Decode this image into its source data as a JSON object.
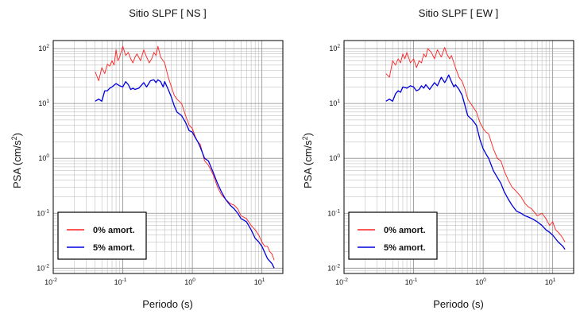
{
  "chart_data": [
    {
      "type": "line",
      "title": "Sitio SLPF [ NS ]",
      "xlabel": "Periodo (s)",
      "ylabel": "PSA (cm/s",
      "ylabel_sup": "2",
      "ylabel_end": ")",
      "xscale": "log",
      "yscale": "log",
      "xlim": [
        0.01,
        20
      ],
      "ylim": [
        0.008,
        140
      ],
      "grid": true,
      "legend_position": "bottom-left",
      "x_ticks": [
        {
          "base": "10",
          "exp": "-2"
        },
        {
          "base": "10",
          "exp": "-1"
        },
        {
          "base": "10",
          "exp": "0"
        },
        {
          "base": "10",
          "exp": "1"
        }
      ],
      "y_ticks": [
        {
          "base": "10",
          "exp": "-2"
        },
        {
          "base": "10",
          "exp": "-1"
        },
        {
          "base": "10",
          "exp": "0"
        },
        {
          "base": "10",
          "exp": "1"
        },
        {
          "base": "10",
          "exp": "2"
        }
      ],
      "series": [
        {
          "name": "0% amort.",
          "color": "#ff2020",
          "x": [
            0.04,
            0.045,
            0.05,
            0.055,
            0.06,
            0.065,
            0.07,
            0.075,
            0.08,
            0.085,
            0.09,
            0.1,
            0.11,
            0.12,
            0.13,
            0.14,
            0.15,
            0.16,
            0.18,
            0.2,
            0.22,
            0.24,
            0.26,
            0.28,
            0.3,
            0.32,
            0.35,
            0.38,
            0.4,
            0.45,
            0.5,
            0.55,
            0.6,
            0.7,
            0.8,
            0.9,
            1.0,
            1.1,
            1.2,
            1.3,
            1.5,
            1.7,
            2.0,
            2.3,
            2.6,
            3.0,
            3.5,
            4.0,
            4.5,
            5.0,
            6.0,
            7.0,
            8.0,
            9.0,
            10.0,
            11.0,
            12.0,
            13.0,
            14.0,
            15.0
          ],
          "y": [
            38,
            26,
            45,
            35,
            52,
            48,
            60,
            50,
            95,
            60,
            70,
            110,
            75,
            85,
            65,
            55,
            70,
            80,
            60,
            95,
            70,
            55,
            65,
            85,
            75,
            110,
            70,
            60,
            55,
            30,
            20,
            14,
            12,
            10,
            6,
            4,
            3.5,
            2.5,
            2.0,
            1.8,
            0.9,
            0.75,
            0.5,
            0.3,
            0.22,
            0.18,
            0.15,
            0.14,
            0.12,
            0.09,
            0.08,
            0.06,
            0.05,
            0.04,
            0.03,
            0.025,
            0.025,
            0.02,
            0.018,
            0.014
          ]
        },
        {
          "name": "5% amort.",
          "color": "#0000dd",
          "x": [
            0.04,
            0.045,
            0.05,
            0.055,
            0.06,
            0.065,
            0.07,
            0.08,
            0.09,
            0.1,
            0.11,
            0.12,
            0.13,
            0.14,
            0.15,
            0.17,
            0.2,
            0.22,
            0.25,
            0.28,
            0.3,
            0.32,
            0.35,
            0.38,
            0.4,
            0.45,
            0.5,
            0.55,
            0.6,
            0.7,
            0.8,
            0.9,
            1.0,
            1.1,
            1.2,
            1.3,
            1.5,
            1.7,
            2.0,
            2.3,
            2.6,
            3.0,
            3.5,
            4.0,
            4.5,
            5.0,
            6.0,
            7.0,
            8.0,
            9.0,
            10.0,
            12.0,
            14.0,
            15.0
          ],
          "y": [
            11,
            12,
            11,
            17,
            17,
            19,
            20,
            23,
            21,
            20,
            25,
            22,
            18,
            19,
            18,
            19,
            24,
            20,
            26,
            27,
            24,
            27,
            25,
            20,
            25,
            18,
            13,
            9,
            7,
            6,
            4.5,
            3.2,
            3.0,
            2.4,
            2.0,
            1.6,
            1.0,
            0.9,
            0.55,
            0.35,
            0.25,
            0.18,
            0.14,
            0.12,
            0.1,
            0.08,
            0.07,
            0.05,
            0.035,
            0.03,
            0.025,
            0.015,
            0.012,
            0.01
          ]
        }
      ]
    },
    {
      "type": "line",
      "title": "Sitio SLPF [ EW ]",
      "xlabel": "Periodo (s)",
      "ylabel": "PSA (cm/s",
      "ylabel_sup": "2",
      "ylabel_end": ")",
      "xscale": "log",
      "yscale": "log",
      "xlim": [
        0.01,
        20
      ],
      "ylim": [
        0.008,
        140
      ],
      "grid": true,
      "legend_position": "bottom-left",
      "x_ticks": [
        {
          "base": "10",
          "exp": "-2"
        },
        {
          "base": "10",
          "exp": "-1"
        },
        {
          "base": "10",
          "exp": "0"
        },
        {
          "base": "10",
          "exp": "1"
        }
      ],
      "y_ticks": [
        {
          "base": "10",
          "exp": "-2"
        },
        {
          "base": "10",
          "exp": "-1"
        },
        {
          "base": "10",
          "exp": "0"
        },
        {
          "base": "10",
          "exp": "1"
        },
        {
          "base": "10",
          "exp": "2"
        }
      ],
      "series": [
        {
          "name": "0% amort.",
          "color": "#ff2020",
          "x": [
            0.04,
            0.045,
            0.05,
            0.055,
            0.06,
            0.065,
            0.07,
            0.075,
            0.08,
            0.09,
            0.1,
            0.11,
            0.12,
            0.13,
            0.14,
            0.15,
            0.16,
            0.18,
            0.2,
            0.22,
            0.25,
            0.28,
            0.3,
            0.33,
            0.35,
            0.38,
            0.4,
            0.45,
            0.5,
            0.55,
            0.6,
            0.7,
            0.8,
            0.9,
            1.0,
            1.1,
            1.2,
            1.4,
            1.6,
            1.8,
            2.0,
            2.3,
            2.6,
            3.0,
            3.5,
            4.0,
            4.5,
            5.0,
            6.0,
            7.0,
            8.0,
            9.0,
            10.0,
            11.0,
            12.0,
            13.0,
            14.0,
            15.0
          ],
          "y": [
            35,
            30,
            60,
            50,
            65,
            55,
            80,
            65,
            85,
            55,
            65,
            45,
            60,
            55,
            80,
            70,
            100,
            85,
            65,
            95,
            70,
            105,
            80,
            65,
            75,
            55,
            45,
            30,
            25,
            18,
            12,
            9,
            7,
            4.5,
            3.5,
            3.0,
            2.8,
            1.5,
            1.0,
            0.9,
            0.6,
            0.4,
            0.3,
            0.25,
            0.2,
            0.15,
            0.13,
            0.12,
            0.09,
            0.1,
            0.08,
            0.06,
            0.07,
            0.05,
            0.045,
            0.04,
            0.035,
            0.03
          ]
        },
        {
          "name": "5% amort.",
          "color": "#0000dd",
          "x": [
            0.04,
            0.045,
            0.05,
            0.055,
            0.06,
            0.065,
            0.07,
            0.08,
            0.09,
            0.1,
            0.11,
            0.12,
            0.13,
            0.14,
            0.15,
            0.17,
            0.2,
            0.22,
            0.25,
            0.28,
            0.3,
            0.32,
            0.35,
            0.38,
            0.4,
            0.45,
            0.5,
            0.55,
            0.6,
            0.7,
            0.8,
            0.9,
            1.0,
            1.1,
            1.2,
            1.4,
            1.6,
            1.8,
            2.0,
            2.3,
            2.6,
            3.0,
            3.5,
            4.0,
            4.5,
            5.0,
            6.0,
            7.0,
            8.0,
            9.0,
            10.0,
            12.0,
            14.0,
            15.0
          ],
          "y": [
            11,
            12,
            11,
            15,
            17,
            16,
            20,
            19,
            21,
            20,
            17,
            18,
            21,
            19,
            22,
            18,
            24,
            21,
            30,
            24,
            28,
            33,
            25,
            20,
            22,
            18,
            14,
            9,
            6,
            5,
            4,
            2.2,
            1.5,
            1.2,
            1.0,
            0.6,
            0.45,
            0.35,
            0.25,
            0.18,
            0.14,
            0.11,
            0.1,
            0.09,
            0.085,
            0.08,
            0.07,
            0.06,
            0.05,
            0.045,
            0.04,
            0.03,
            0.025,
            0.022
          ]
        }
      ]
    }
  ]
}
